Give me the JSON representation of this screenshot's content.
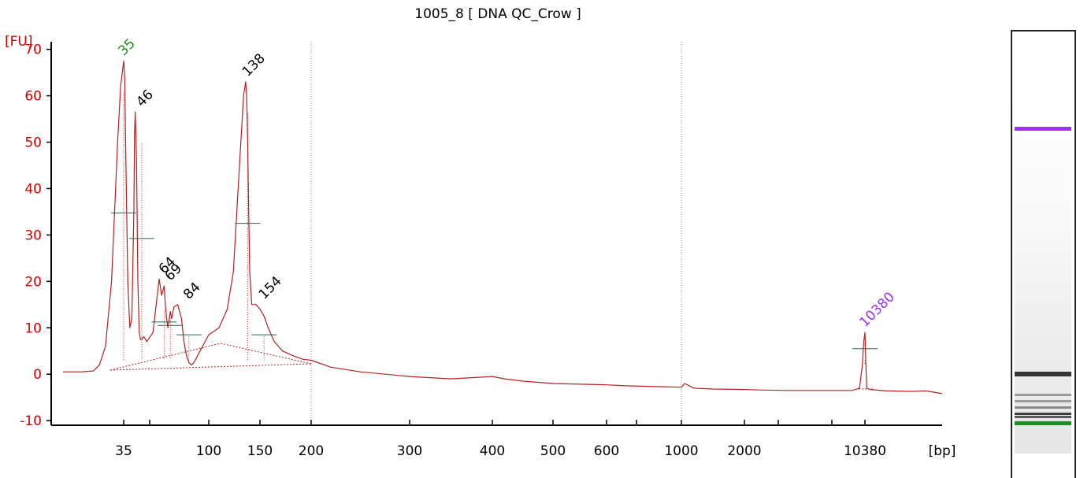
{
  "chart_data": {
    "type": "line",
    "title": "1005_8  [ DNA QC_Crow ]",
    "ylabel": "[FU]",
    "xlabel": "[bp]",
    "ylim": [
      -11,
      73
    ],
    "y_ticks": [
      -10,
      0,
      10,
      20,
      30,
      40,
      50,
      60,
      70
    ],
    "x_tick_labels": [
      "35",
      "100",
      "150",
      "200",
      "300",
      "400",
      "500",
      "600",
      "1000",
      "2000",
      "10380"
    ],
    "x_scale": "calibrated ladder (non-linear)",
    "series": [
      {
        "color": "#b22222",
        "x": [
          25,
          28,
          30,
          31,
          32,
          33,
          34,
          34.5,
          35,
          35.5,
          36,
          37,
          38,
          39,
          40,
          40.5,
          41,
          42,
          43,
          44,
          45,
          46,
          47,
          48,
          50,
          55,
          60,
          62,
          64,
          65,
          66,
          67,
          69,
          70,
          72,
          75,
          78,
          80,
          82,
          84,
          86,
          88,
          90,
          93,
          96,
          100,
          110,
          118,
          124,
          130,
          134,
          136,
          137,
          138,
          139,
          140,
          142,
          146,
          150,
          154,
          158,
          164,
          172,
          182,
          192,
          200,
          220,
          250,
          300,
          350,
          400,
          420,
          450,
          500,
          600,
          700,
          800,
          900,
          1000,
          1050,
          1200,
          1500,
          2000,
          3000,
          5000,
          8000,
          9500,
          10000,
          10200,
          10300,
          10380,
          10480,
          10600,
          11000,
          13000,
          16000,
          18000,
          20000
        ],
        "values": [
          0.5,
          0.5,
          0.7,
          2.0,
          6.0,
          20.0,
          50.0,
          62.0,
          67.5,
          64.0,
          48.0,
          20.0,
          10.0,
          12.0,
          36.0,
          52.0,
          56.5,
          46.0,
          20.0,
          9.0,
          7.5,
          7.5,
          8.0,
          8.0,
          7.0,
          9.0,
          20.5,
          17.0,
          19.0,
          15.0,
          12.0,
          10.0,
          13.5,
          12.0,
          14.5,
          15.0,
          12.0,
          7.0,
          4.0,
          2.5,
          2.0,
          2.5,
          3.5,
          5.0,
          6.5,
          8.5,
          10.0,
          14.0,
          22.0,
          45.0,
          60.0,
          63.0,
          60.0,
          50.0,
          35.0,
          22.0,
          15.0,
          15.0,
          14.0,
          12.5,
          10.0,
          7.0,
          5.0,
          4.0,
          3.2,
          3.0,
          1.5,
          0.5,
          -0.5,
          -1.0,
          -0.5,
          -1.0,
          -1.5,
          -2.0,
          -2.3,
          -2.5,
          -2.6,
          -2.7,
          -2.8,
          -2.0,
          -3.0,
          -3.2,
          -3.3,
          -3.4,
          -3.5,
          -3.5,
          -3.5,
          -3.0,
          2.0,
          7.0,
          9.0,
          3.0,
          -3.0,
          -3.3,
          -3.6,
          -3.7,
          -3.6,
          -4.2
        ]
      }
    ],
    "peaks": [
      {
        "label": "35",
        "size": 35,
        "height": 67.5,
        "color": "#228b22"
      },
      {
        "label": "46",
        "size": 46,
        "height": 56.5,
        "color": "#000000"
      },
      {
        "label": "64",
        "size": 64,
        "height": 20.5,
        "color": "#000000"
      },
      {
        "label": "69",
        "size": 69,
        "height": 19.0,
        "color": "#000000"
      },
      {
        "label": "84",
        "size": 84,
        "height": 15.0,
        "color": "#000000"
      },
      {
        "label": "138",
        "size": 138,
        "height": 63.0,
        "color": "#000000"
      },
      {
        "label": "154",
        "size": 154,
        "height": 15.0,
        "color": "#000000"
      },
      {
        "label": "10380",
        "size": 10380,
        "height": 9.0,
        "color": "#9b30ff"
      }
    ],
    "gridlines_at": [
      200,
      1000
    ],
    "gel_lane": {
      "marker_colors": [
        "#9b30ff",
        "#228b22"
      ]
    }
  }
}
